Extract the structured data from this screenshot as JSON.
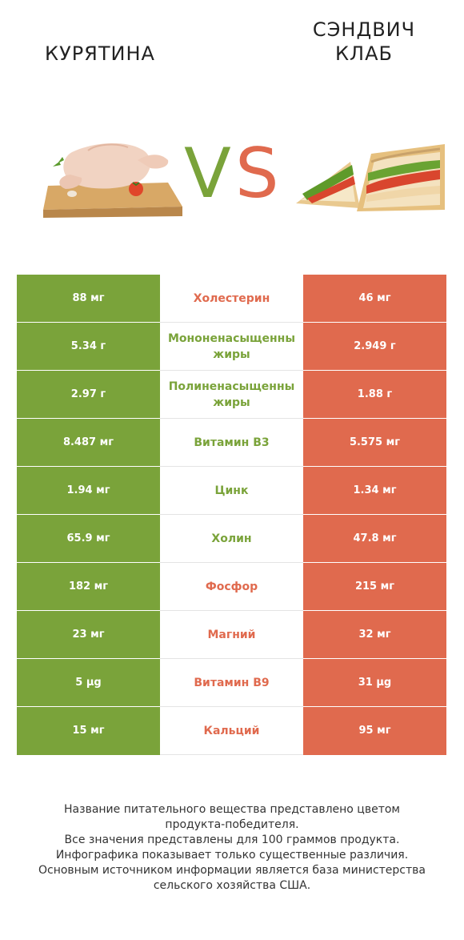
{
  "left_product": {
    "name": "КУРЯТИНА",
    "color": "#7aa33a",
    "image_icon": "roast-chicken-on-board"
  },
  "right_product": {
    "name": "СЭНДВИЧ КЛАБ",
    "name_lines": [
      "СЭНДВИЧ",
      "КЛАБ"
    ],
    "color": "#e06a4e",
    "image_icon": "club-sandwich"
  },
  "vs": {
    "v": "V",
    "s": "S",
    "v_color": "#7aa33a",
    "s_color": "#e06a4e"
  },
  "rows": [
    {
      "name": "Холестерин",
      "left": "88 мг",
      "right": "46 мг",
      "winner": "right"
    },
    {
      "name": "Мононенасыщенные жиры",
      "name_lines": [
        "Мононенасыщенны",
        "жиры"
      ],
      "left": "5.34 г",
      "right": "2.949 г",
      "winner": "left"
    },
    {
      "name": "Полиненасыщенные жиры",
      "name_lines": [
        "Полиненасыщенны",
        "жиры"
      ],
      "left": "2.97 г",
      "right": "1.88 г",
      "winner": "left"
    },
    {
      "name": "Витамин B3",
      "left": "8.487 мг",
      "right": "5.575 мг",
      "winner": "left"
    },
    {
      "name": "Цинк",
      "left": "1.94 мг",
      "right": "1.34 мг",
      "winner": "left"
    },
    {
      "name": "Холин",
      "left": "65.9 мг",
      "right": "47.8 мг",
      "winner": "left"
    },
    {
      "name": "Фосфор",
      "left": "182 мг",
      "right": "215 мг",
      "winner": "right"
    },
    {
      "name": "Магний",
      "left": "23 мг",
      "right": "32 мг",
      "winner": "right"
    },
    {
      "name": "Витамин B9",
      "left": "5 µg",
      "right": "31 µg",
      "winner": "right"
    },
    {
      "name": "Кальций",
      "left": "15 мг",
      "right": "95 мг",
      "winner": "right"
    }
  ],
  "footnote": [
    "Название питательного вещества представлено цветом",
    "продукта-победителя.",
    "Все значения представлены для 100 граммов продукта.",
    "Инфографика показывает только существенные различия.",
    "Основным источником информации является база министерства",
    "сельского хозяйства США."
  ]
}
